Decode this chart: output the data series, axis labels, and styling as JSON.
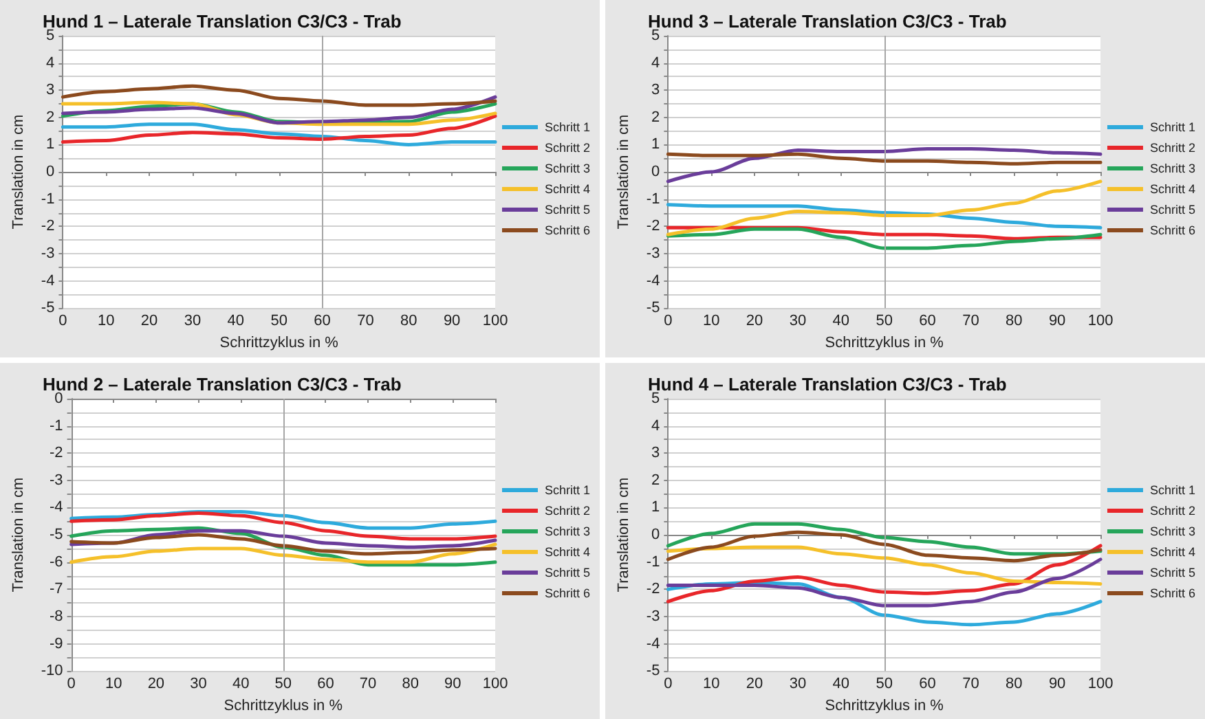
{
  "chart_data": [
    {
      "type": "line",
      "title": "Hund 1 – Laterale Translation C3/C3 - Trab",
      "xlabel": "Schrittzyklus in %",
      "ylabel": "Translation in cm",
      "x": [
        0,
        10,
        20,
        30,
        40,
        50,
        60,
        70,
        80,
        90,
        100
      ],
      "xlim": [
        0,
        100
      ],
      "xticks": [
        0,
        10,
        20,
        30,
        40,
        50,
        60,
        70,
        80,
        90,
        100
      ],
      "ylim": [
        -5,
        5
      ],
      "yticks": [
        -5,
        {
          "value": -4.5,
          "label": null
        },
        -4,
        {
          "value": -3.5,
          "label": null
        },
        -3,
        {
          "value": -2.5,
          "label": null
        },
        -2,
        {
          "value": -1.5,
          "label": null
        },
        -1,
        {
          "value": -0.5,
          "label": null
        },
        0,
        {
          "value": 0.5,
          "label": null
        },
        1,
        {
          "value": 1.5,
          "label": null
        },
        2,
        {
          "value": 2.5,
          "label": null
        },
        3,
        {
          "value": 3.5,
          "label": null
        },
        4,
        {
          "value": 4.5,
          "label": null
        },
        5
      ],
      "grid": "y",
      "legend": "right",
      "marker": "none",
      "ref_lines": [
        {
          "axis": "x",
          "value": 60,
          "color": "#a6a6a6"
        }
      ],
      "series": [
        {
          "name": "Schritt 1",
          "color": "#2eaadc",
          "values": [
            1.65,
            1.65,
            1.75,
            1.75,
            1.55,
            1.4,
            1.3,
            1.15,
            1.0,
            1.1,
            1.1
          ]
        },
        {
          "name": "Schritt 2",
          "color": "#e8262a",
          "values": [
            1.1,
            1.15,
            1.35,
            1.45,
            1.4,
            1.25,
            1.2,
            1.3,
            1.35,
            1.6,
            2.05
          ]
        },
        {
          "name": "Schritt 3",
          "color": "#25a55a",
          "values": [
            2.05,
            2.25,
            2.4,
            2.5,
            2.2,
            1.85,
            1.8,
            1.8,
            1.85,
            2.2,
            2.5
          ]
        },
        {
          "name": "Schritt 4",
          "color": "#f5c02a",
          "values": [
            2.5,
            2.5,
            2.55,
            2.5,
            2.1,
            1.8,
            1.75,
            1.75,
            1.75,
            1.9,
            2.15
          ]
        },
        {
          "name": "Schritt 5",
          "color": "#6a3d9a",
          "values": [
            2.15,
            2.2,
            2.3,
            2.35,
            2.15,
            1.8,
            1.85,
            1.9,
            2.0,
            2.3,
            2.75
          ]
        },
        {
          "name": "Schritt 6",
          "color": "#8b4a1e",
          "values": [
            2.75,
            2.95,
            3.05,
            3.15,
            3.0,
            2.7,
            2.6,
            2.45,
            2.45,
            2.5,
            2.6
          ]
        }
      ]
    },
    {
      "type": "line",
      "title": "Hund 3 – Laterale Translation C3/C3 - Trab",
      "xlabel": "Schrittzyklus in %",
      "ylabel": "Translation in cm",
      "x": [
        0,
        10,
        20,
        30,
        40,
        50,
        60,
        70,
        80,
        90,
        100
      ],
      "xlim": [
        0,
        100
      ],
      "xticks": [
        0,
        10,
        20,
        30,
        40,
        50,
        60,
        70,
        80,
        90,
        100
      ],
      "ylim": [
        -5,
        5
      ],
      "yticks": [
        -5,
        {
          "value": -4.5,
          "label": null
        },
        -4,
        {
          "value": -3.5,
          "label": null
        },
        -3,
        {
          "value": -2.5,
          "label": null
        },
        -2,
        {
          "value": -1.5,
          "label": null
        },
        -1,
        {
          "value": -0.5,
          "label": null
        },
        0,
        {
          "value": 0.5,
          "label": null
        },
        1,
        {
          "value": 1.5,
          "label": null
        },
        2,
        {
          "value": 2.5,
          "label": null
        },
        3,
        {
          "value": 3.5,
          "label": null
        },
        4,
        {
          "value": 4.5,
          "label": null
        },
        5
      ],
      "grid": "y",
      "legend": "right",
      "marker": "none",
      "ref_lines": [
        {
          "axis": "x",
          "value": 50,
          "color": "#a6a6a6"
        }
      ],
      "series": [
        {
          "name": "Schritt 1",
          "color": "#2eaadc",
          "values": [
            -1.2,
            -1.25,
            -1.25,
            -1.25,
            -1.4,
            -1.5,
            -1.55,
            -1.7,
            -1.85,
            -2.0,
            -2.05
          ]
        },
        {
          "name": "Schritt 2",
          "color": "#e8262a",
          "values": [
            -2.05,
            -2.05,
            -2.05,
            -2.05,
            -2.2,
            -2.3,
            -2.3,
            -2.35,
            -2.45,
            -2.4,
            -2.4
          ]
        },
        {
          "name": "Schritt 3",
          "color": "#25a55a",
          "values": [
            -2.35,
            -2.3,
            -2.1,
            -2.1,
            -2.4,
            -2.8,
            -2.8,
            -2.7,
            -2.55,
            -2.45,
            -2.3
          ]
        },
        {
          "name": "Schritt 4",
          "color": "#f5c02a",
          "values": [
            -2.3,
            -2.1,
            -1.7,
            -1.45,
            -1.5,
            -1.6,
            -1.6,
            -1.4,
            -1.15,
            -0.7,
            -0.35
          ]
        },
        {
          "name": "Schritt 5",
          "color": "#6a3d9a",
          "values": [
            -0.35,
            0.0,
            0.5,
            0.8,
            0.75,
            0.75,
            0.85,
            0.85,
            0.8,
            0.7,
            0.65
          ]
        },
        {
          "name": "Schritt 6",
          "color": "#8b4a1e",
          "values": [
            0.65,
            0.6,
            0.6,
            0.65,
            0.5,
            0.4,
            0.4,
            0.35,
            0.3,
            0.35,
            0.35
          ]
        }
      ]
    },
    {
      "type": "line",
      "title": "Hund 2 – Laterale Translation C3/C3 - Trab",
      "xlabel": "Schrittzyklus in %",
      "ylabel": "Translation in cm",
      "x": [
        0,
        10,
        20,
        30,
        40,
        50,
        60,
        70,
        80,
        90,
        100
      ],
      "xlim": [
        0,
        100
      ],
      "xticks": [
        0,
        10,
        20,
        30,
        40,
        50,
        60,
        70,
        80,
        90,
        100
      ],
      "ylim": [
        -10,
        0
      ],
      "yticks": [
        -10,
        {
          "value": -9.5,
          "label": null
        },
        -9,
        {
          "value": -8.5,
          "label": null
        },
        -8,
        {
          "value": -7.5,
          "label": null
        },
        -7,
        {
          "value": -6.5,
          "label": null
        },
        -6,
        {
          "value": -5.5,
          "label": null
        },
        -5,
        {
          "value": -4.5,
          "label": null
        },
        -4,
        {
          "value": -3.5,
          "label": null
        },
        -3,
        {
          "value": -2.5,
          "label": null
        },
        -2,
        {
          "value": -1.5,
          "label": null
        },
        -1,
        {
          "value": -0.5,
          "label": null
        },
        0
      ],
      "grid": "y",
      "legend": "right",
      "marker": "none",
      "ref_lines": [
        {
          "axis": "x",
          "value": 50,
          "color": "#a6a6a6"
        }
      ],
      "series": [
        {
          "name": "Schritt 1",
          "color": "#2eaadc",
          "values": [
            -4.4,
            -4.35,
            -4.25,
            -4.15,
            -4.15,
            -4.3,
            -4.55,
            -4.75,
            -4.75,
            -4.6,
            -4.5
          ]
        },
        {
          "name": "Schritt 2",
          "color": "#e8262a",
          "values": [
            -4.5,
            -4.45,
            -4.3,
            -4.2,
            -4.3,
            -4.55,
            -4.85,
            -5.05,
            -5.15,
            -5.15,
            -5.05
          ]
        },
        {
          "name": "Schritt 3",
          "color": "#25a55a",
          "values": [
            -5.05,
            -4.85,
            -4.8,
            -4.75,
            -4.95,
            -5.45,
            -5.75,
            -6.1,
            -6.1,
            -6.1,
            -6.0
          ]
        },
        {
          "name": "Schritt 4",
          "color": "#f5c02a",
          "values": [
            -6.0,
            -5.8,
            -5.6,
            -5.5,
            -5.5,
            -5.75,
            -5.9,
            -6.0,
            -6.0,
            -5.7,
            -5.35
          ]
        },
        {
          "name": "Schritt 5",
          "color": "#6a3d9a",
          "values": [
            -5.35,
            -5.3,
            -5.0,
            -4.85,
            -4.85,
            -5.05,
            -5.3,
            -5.4,
            -5.45,
            -5.4,
            -5.2
          ]
        },
        {
          "name": "Schritt 6",
          "color": "#8b4a1e",
          "values": [
            -5.25,
            -5.3,
            -5.1,
            -5.0,
            -5.15,
            -5.4,
            -5.6,
            -5.7,
            -5.65,
            -5.55,
            -5.5
          ]
        }
      ]
    },
    {
      "type": "line",
      "title": "Hund 4 – Laterale Translation C3/C3 - Trab",
      "xlabel": "Schrittzyklus in %",
      "ylabel": "Translation in cm",
      "x": [
        0,
        10,
        20,
        30,
        40,
        50,
        60,
        70,
        80,
        90,
        100
      ],
      "xlim": [
        0,
        100
      ],
      "xticks": [
        0,
        10,
        20,
        30,
        40,
        50,
        60,
        70,
        80,
        90,
        100
      ],
      "ylim": [
        -5,
        5
      ],
      "yticks": [
        -5,
        {
          "value": -4.5,
          "label": null
        },
        -4,
        {
          "value": -3.5,
          "label": null
        },
        -3,
        {
          "value": -2.5,
          "label": null
        },
        -2,
        {
          "value": -1.5,
          "label": null
        },
        -1,
        {
          "value": -0.5,
          "label": null
        },
        0,
        {
          "value": 0.5,
          "label": null
        },
        1,
        {
          "value": 1.5,
          "label": null
        },
        2,
        {
          "value": 2.5,
          "label": null
        },
        3,
        {
          "value": 3.5,
          "label": null
        },
        4,
        {
          "value": 4.5,
          "label": null
        },
        5
      ],
      "grid": "y",
      "legend": "right",
      "marker": "none",
      "ref_lines": [
        {
          "axis": "x",
          "value": 50,
          "color": "#a6a6a6"
        }
      ],
      "series": [
        {
          "name": "Schritt 1",
          "color": "#2eaadc",
          "values": [
            -2.0,
            -1.8,
            -1.75,
            -1.8,
            -2.3,
            -2.95,
            -3.2,
            -3.3,
            -3.2,
            -2.9,
            -2.45
          ]
        },
        {
          "name": "Schritt 2",
          "color": "#e8262a",
          "values": [
            -2.45,
            -2.05,
            -1.7,
            -1.55,
            -1.85,
            -2.1,
            -2.15,
            -2.05,
            -1.8,
            -1.1,
            -0.4
          ]
        },
        {
          "name": "Schritt 3",
          "color": "#25a55a",
          "values": [
            -0.4,
            0.05,
            0.4,
            0.4,
            0.2,
            -0.1,
            -0.25,
            -0.45,
            -0.7,
            -0.7,
            -0.6
          ]
        },
        {
          "name": "Schritt 4",
          "color": "#f5c02a",
          "values": [
            -0.6,
            -0.5,
            -0.45,
            -0.45,
            -0.7,
            -0.85,
            -1.1,
            -1.4,
            -1.7,
            -1.75,
            -1.8
          ]
        },
        {
          "name": "Schritt 5",
          "color": "#6a3d9a",
          "values": [
            -1.85,
            -1.85,
            -1.85,
            -1.95,
            -2.3,
            -2.6,
            -2.6,
            -2.45,
            -2.1,
            -1.6,
            -0.9
          ]
        },
        {
          "name": "Schritt 6",
          "color": "#8b4a1e",
          "values": [
            -0.9,
            -0.45,
            -0.05,
            0.1,
            0.0,
            -0.35,
            -0.75,
            -0.85,
            -0.95,
            -0.75,
            -0.55
          ]
        }
      ]
    }
  ]
}
